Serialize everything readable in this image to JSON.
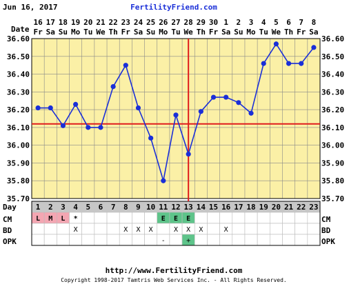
{
  "header": {
    "date": "Jun 16, 2017",
    "site": "FertilityFriend.com"
  },
  "row_labels": {
    "date": "Date",
    "day": "Day",
    "cm": "CM",
    "bd": "BD",
    "opk": "OPK"
  },
  "columns": {
    "dates": [
      "16",
      "17",
      "18",
      "19",
      "20",
      "21",
      "22",
      "23",
      "24",
      "25",
      "26",
      "27",
      "28",
      "29",
      "30",
      "1",
      "2",
      "3",
      "4",
      "5",
      "6",
      "7",
      "8"
    ],
    "weekdays": [
      "Fr",
      "Sa",
      "Su",
      "Mo",
      "Tu",
      "We",
      "Th",
      "Fr",
      "Sa",
      "Su",
      "Mo",
      "Tu",
      "We",
      "Th",
      "Fr",
      "Sa",
      "Su",
      "Mo",
      "Tu",
      "We",
      "Th",
      "Fr",
      "Sa"
    ],
    "cycle_days": [
      "1",
      "2",
      "3",
      "4",
      "5",
      "6",
      "7",
      "8",
      "9",
      "10",
      "11",
      "12",
      "13",
      "14",
      "15",
      "16",
      "17",
      "18",
      "19",
      "20",
      "21",
      "22",
      "23"
    ]
  },
  "cm": [
    "L",
    "M",
    "L",
    "*",
    "",
    "",
    "",
    "",
    "",
    "",
    "E",
    "E",
    "E",
    "",
    "",
    "",
    "",
    "",
    "",
    "",
    "",
    "",
    ""
  ],
  "bd": [
    "",
    "",
    "",
    "X",
    "",
    "",
    "",
    "X",
    "X",
    "X",
    "",
    "X",
    "X",
    "X",
    "",
    "X",
    "",
    "",
    "",
    "",
    "",
    "",
    ""
  ],
  "opk": [
    "",
    "",
    "",
    "",
    "",
    "",
    "",
    "",
    "",
    "",
    "-",
    "",
    "+",
    "",
    "",
    "",
    "",
    "",
    "",
    "",
    "",
    "",
    ""
  ],
  "colors": {
    "plot_bg": "#fbf0a6",
    "grid": "#888888",
    "line": "#1a2fd8",
    "coverline": "#e01b1b",
    "day_row_bg": "#c7c7c7",
    "menses_bg": "#f4a6b2",
    "egg_white_bg": "#5ec48a",
    "opk_positive_bg": "#5ec48a",
    "site_text": "#1a2fd8"
  },
  "chart_data": {
    "type": "line",
    "x": [
      "1",
      "2",
      "3",
      "4",
      "5",
      "6",
      "7",
      "8",
      "9",
      "10",
      "11",
      "12",
      "13",
      "14",
      "15",
      "16",
      "17",
      "18",
      "19",
      "20",
      "21",
      "22",
      "23"
    ],
    "series": [
      {
        "values": [
          36.21,
          36.21,
          36.11,
          36.23,
          36.1,
          36.1,
          36.33,
          36.45,
          36.21,
          36.04,
          35.8,
          36.17,
          35.95,
          36.19,
          36.27,
          36.27,
          36.24,
          36.18,
          36.46,
          36.57,
          36.46,
          36.46,
          36.55
        ]
      }
    ],
    "ylim": [
      35.7,
      36.6
    ],
    "yticks": [
      "35.70",
      "35.80",
      "35.90",
      "36.00",
      "36.10",
      "36.20",
      "36.30",
      "36.40",
      "36.50",
      "36.60"
    ],
    "coverline": 36.12,
    "ovulation_day": 13,
    "grid": true
  },
  "footer": {
    "url": "http://www.FertilityFriend.com",
    "copyright": "Copyright 1998-2017 Tamtris Web Services Inc. - All Rights Reserved."
  }
}
